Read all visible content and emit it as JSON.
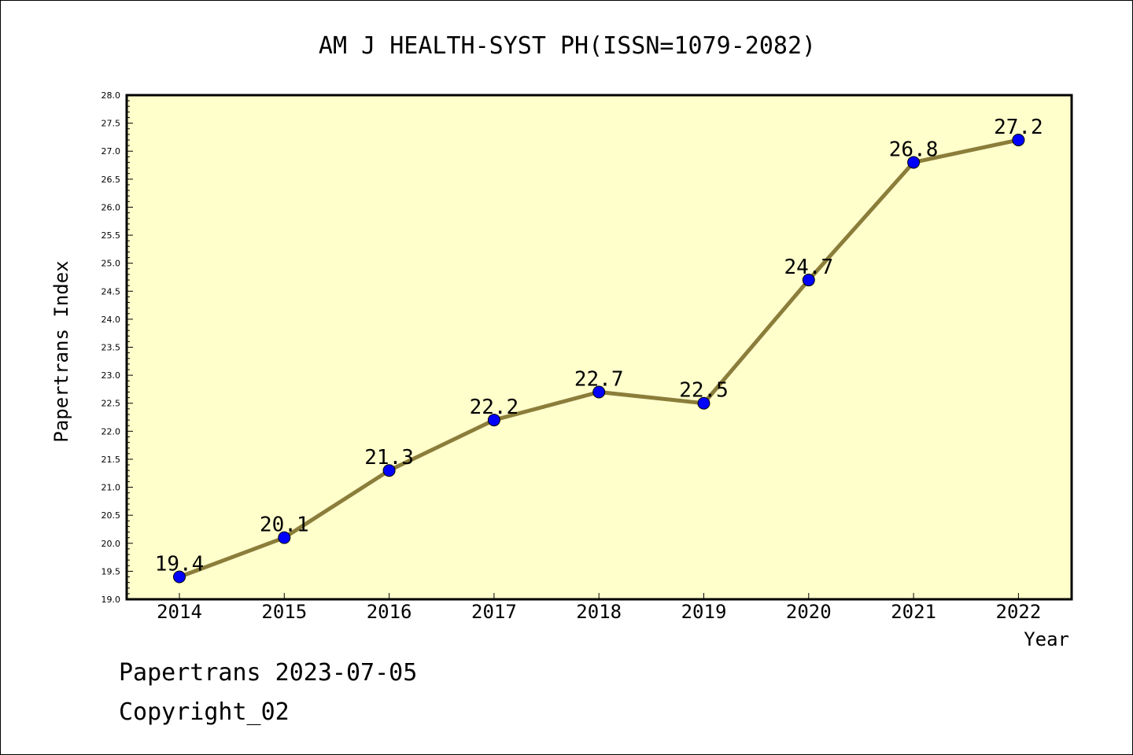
{
  "chart_data": {
    "type": "line",
    "title": "AM J HEALTH-SYST PH(ISSN=1079-2082)",
    "xlabel": "Year",
    "ylabel": "Papertrans Index",
    "x": [
      "2014",
      "2015",
      "2016",
      "2017",
      "2018",
      "2019",
      "2020",
      "2021",
      "2022"
    ],
    "series": [
      {
        "values": [
          19.4,
          20.1,
          21.3,
          22.2,
          22.7,
          22.5,
          24.7,
          26.8,
          27.2
        ]
      }
    ],
    "data_labels": [
      "19.4",
      "20.1",
      "21.3",
      "22.2",
      "22.7",
      "22.5",
      "24.7",
      "26.8",
      "27.2"
    ],
    "ylim": [
      19.0,
      28.0
    ],
    "y_ticks": [
      "19.0",
      "19.5",
      "20.0",
      "20.5",
      "21.0",
      "21.5",
      "22.0",
      "22.5",
      "23.0",
      "23.5",
      "24.0",
      "24.5",
      "25.0",
      "25.5",
      "26.0",
      "26.5",
      "27.0",
      "27.5",
      "28.0"
    ],
    "grid": false,
    "colors": {
      "plot_background": "#ffffcc",
      "line": "#8b7d3a",
      "marker": "#0000ff"
    }
  },
  "footer": {
    "line1": "Papertrans 2023-07-05",
    "line2": "Copyright_02"
  }
}
